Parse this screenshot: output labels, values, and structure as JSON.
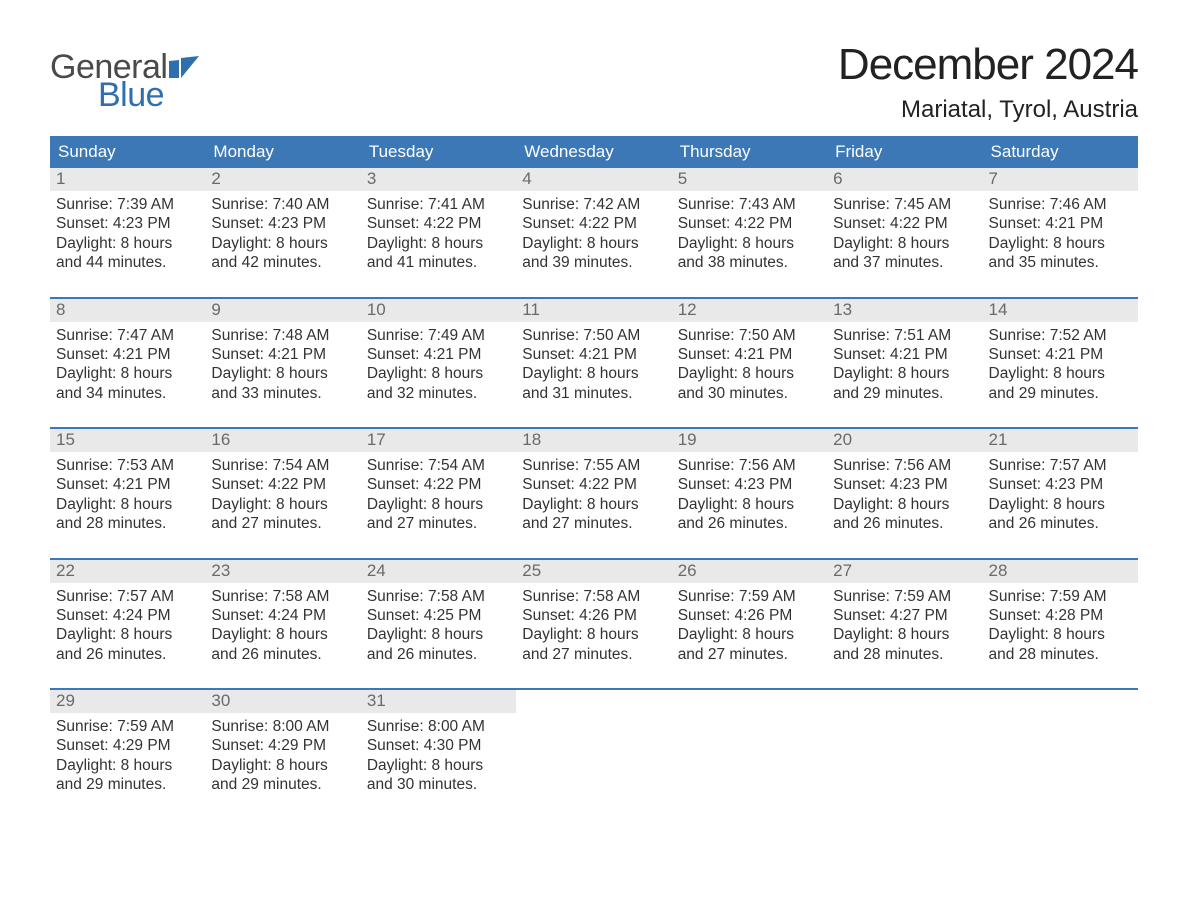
{
  "brand": {
    "word1": "General",
    "word2": "Blue"
  },
  "colors": {
    "header_bg": "#3b78b5",
    "header_text": "#ffffff",
    "daynum_bg": "#e9e9e9",
    "daynum_text": "#6a6a6a",
    "body_text": "#333333",
    "accent_blue": "#2f6fae",
    "row_divider": "#3b78b5",
    "page_bg": "#ffffff"
  },
  "typography": {
    "title_fontsize_pt": 33,
    "location_fontsize_pt": 18,
    "dayheader_fontsize_pt": 13,
    "daynum_fontsize_pt": 13,
    "body_fontsize_pt": 12,
    "logo_fontsize_pt": 26
  },
  "title": "December 2024",
  "location": "Mariatal, Tyrol, Austria",
  "day_headers": [
    "Sunday",
    "Monday",
    "Tuesday",
    "Wednesday",
    "Thursday",
    "Friday",
    "Saturday"
  ],
  "weeks": [
    [
      {
        "n": "1",
        "sunrise": "Sunrise: 7:39 AM",
        "sunset": "Sunset: 4:23 PM",
        "d1": "Daylight: 8 hours",
        "d2": "and 44 minutes."
      },
      {
        "n": "2",
        "sunrise": "Sunrise: 7:40 AM",
        "sunset": "Sunset: 4:23 PM",
        "d1": "Daylight: 8 hours",
        "d2": "and 42 minutes."
      },
      {
        "n": "3",
        "sunrise": "Sunrise: 7:41 AM",
        "sunset": "Sunset: 4:22 PM",
        "d1": "Daylight: 8 hours",
        "d2": "and 41 minutes."
      },
      {
        "n": "4",
        "sunrise": "Sunrise: 7:42 AM",
        "sunset": "Sunset: 4:22 PM",
        "d1": "Daylight: 8 hours",
        "d2": "and 39 minutes."
      },
      {
        "n": "5",
        "sunrise": "Sunrise: 7:43 AM",
        "sunset": "Sunset: 4:22 PM",
        "d1": "Daylight: 8 hours",
        "d2": "and 38 minutes."
      },
      {
        "n": "6",
        "sunrise": "Sunrise: 7:45 AM",
        "sunset": "Sunset: 4:22 PM",
        "d1": "Daylight: 8 hours",
        "d2": "and 37 minutes."
      },
      {
        "n": "7",
        "sunrise": "Sunrise: 7:46 AM",
        "sunset": "Sunset: 4:21 PM",
        "d1": "Daylight: 8 hours",
        "d2": "and 35 minutes."
      }
    ],
    [
      {
        "n": "8",
        "sunrise": "Sunrise: 7:47 AM",
        "sunset": "Sunset: 4:21 PM",
        "d1": "Daylight: 8 hours",
        "d2": "and 34 minutes."
      },
      {
        "n": "9",
        "sunrise": "Sunrise: 7:48 AM",
        "sunset": "Sunset: 4:21 PM",
        "d1": "Daylight: 8 hours",
        "d2": "and 33 minutes."
      },
      {
        "n": "10",
        "sunrise": "Sunrise: 7:49 AM",
        "sunset": "Sunset: 4:21 PM",
        "d1": "Daylight: 8 hours",
        "d2": "and 32 minutes."
      },
      {
        "n": "11",
        "sunrise": "Sunrise: 7:50 AM",
        "sunset": "Sunset: 4:21 PM",
        "d1": "Daylight: 8 hours",
        "d2": "and 31 minutes."
      },
      {
        "n": "12",
        "sunrise": "Sunrise: 7:50 AM",
        "sunset": "Sunset: 4:21 PM",
        "d1": "Daylight: 8 hours",
        "d2": "and 30 minutes."
      },
      {
        "n": "13",
        "sunrise": "Sunrise: 7:51 AM",
        "sunset": "Sunset: 4:21 PM",
        "d1": "Daylight: 8 hours",
        "d2": "and 29 minutes."
      },
      {
        "n": "14",
        "sunrise": "Sunrise: 7:52 AM",
        "sunset": "Sunset: 4:21 PM",
        "d1": "Daylight: 8 hours",
        "d2": "and 29 minutes."
      }
    ],
    [
      {
        "n": "15",
        "sunrise": "Sunrise: 7:53 AM",
        "sunset": "Sunset: 4:21 PM",
        "d1": "Daylight: 8 hours",
        "d2": "and 28 minutes."
      },
      {
        "n": "16",
        "sunrise": "Sunrise: 7:54 AM",
        "sunset": "Sunset: 4:22 PM",
        "d1": "Daylight: 8 hours",
        "d2": "and 27 minutes."
      },
      {
        "n": "17",
        "sunrise": "Sunrise: 7:54 AM",
        "sunset": "Sunset: 4:22 PM",
        "d1": "Daylight: 8 hours",
        "d2": "and 27 minutes."
      },
      {
        "n": "18",
        "sunrise": "Sunrise: 7:55 AM",
        "sunset": "Sunset: 4:22 PM",
        "d1": "Daylight: 8 hours",
        "d2": "and 27 minutes."
      },
      {
        "n": "19",
        "sunrise": "Sunrise: 7:56 AM",
        "sunset": "Sunset: 4:23 PM",
        "d1": "Daylight: 8 hours",
        "d2": "and 26 minutes."
      },
      {
        "n": "20",
        "sunrise": "Sunrise: 7:56 AM",
        "sunset": "Sunset: 4:23 PM",
        "d1": "Daylight: 8 hours",
        "d2": "and 26 minutes."
      },
      {
        "n": "21",
        "sunrise": "Sunrise: 7:57 AM",
        "sunset": "Sunset: 4:23 PM",
        "d1": "Daylight: 8 hours",
        "d2": "and 26 minutes."
      }
    ],
    [
      {
        "n": "22",
        "sunrise": "Sunrise: 7:57 AM",
        "sunset": "Sunset: 4:24 PM",
        "d1": "Daylight: 8 hours",
        "d2": "and 26 minutes."
      },
      {
        "n": "23",
        "sunrise": "Sunrise: 7:58 AM",
        "sunset": "Sunset: 4:24 PM",
        "d1": "Daylight: 8 hours",
        "d2": "and 26 minutes."
      },
      {
        "n": "24",
        "sunrise": "Sunrise: 7:58 AM",
        "sunset": "Sunset: 4:25 PM",
        "d1": "Daylight: 8 hours",
        "d2": "and 26 minutes."
      },
      {
        "n": "25",
        "sunrise": "Sunrise: 7:58 AM",
        "sunset": "Sunset: 4:26 PM",
        "d1": "Daylight: 8 hours",
        "d2": "and 27 minutes."
      },
      {
        "n": "26",
        "sunrise": "Sunrise: 7:59 AM",
        "sunset": "Sunset: 4:26 PM",
        "d1": "Daylight: 8 hours",
        "d2": "and 27 minutes."
      },
      {
        "n": "27",
        "sunrise": "Sunrise: 7:59 AM",
        "sunset": "Sunset: 4:27 PM",
        "d1": "Daylight: 8 hours",
        "d2": "and 28 minutes."
      },
      {
        "n": "28",
        "sunrise": "Sunrise: 7:59 AM",
        "sunset": "Sunset: 4:28 PM",
        "d1": "Daylight: 8 hours",
        "d2": "and 28 minutes."
      }
    ],
    [
      {
        "n": "29",
        "sunrise": "Sunrise: 7:59 AM",
        "sunset": "Sunset: 4:29 PM",
        "d1": "Daylight: 8 hours",
        "d2": "and 29 minutes."
      },
      {
        "n": "30",
        "sunrise": "Sunrise: 8:00 AM",
        "sunset": "Sunset: 4:29 PM",
        "d1": "Daylight: 8 hours",
        "d2": "and 29 minutes."
      },
      {
        "n": "31",
        "sunrise": "Sunrise: 8:00 AM",
        "sunset": "Sunset: 4:30 PM",
        "d1": "Daylight: 8 hours",
        "d2": "and 30 minutes."
      },
      {
        "empty": true
      },
      {
        "empty": true
      },
      {
        "empty": true
      },
      {
        "empty": true
      }
    ]
  ]
}
